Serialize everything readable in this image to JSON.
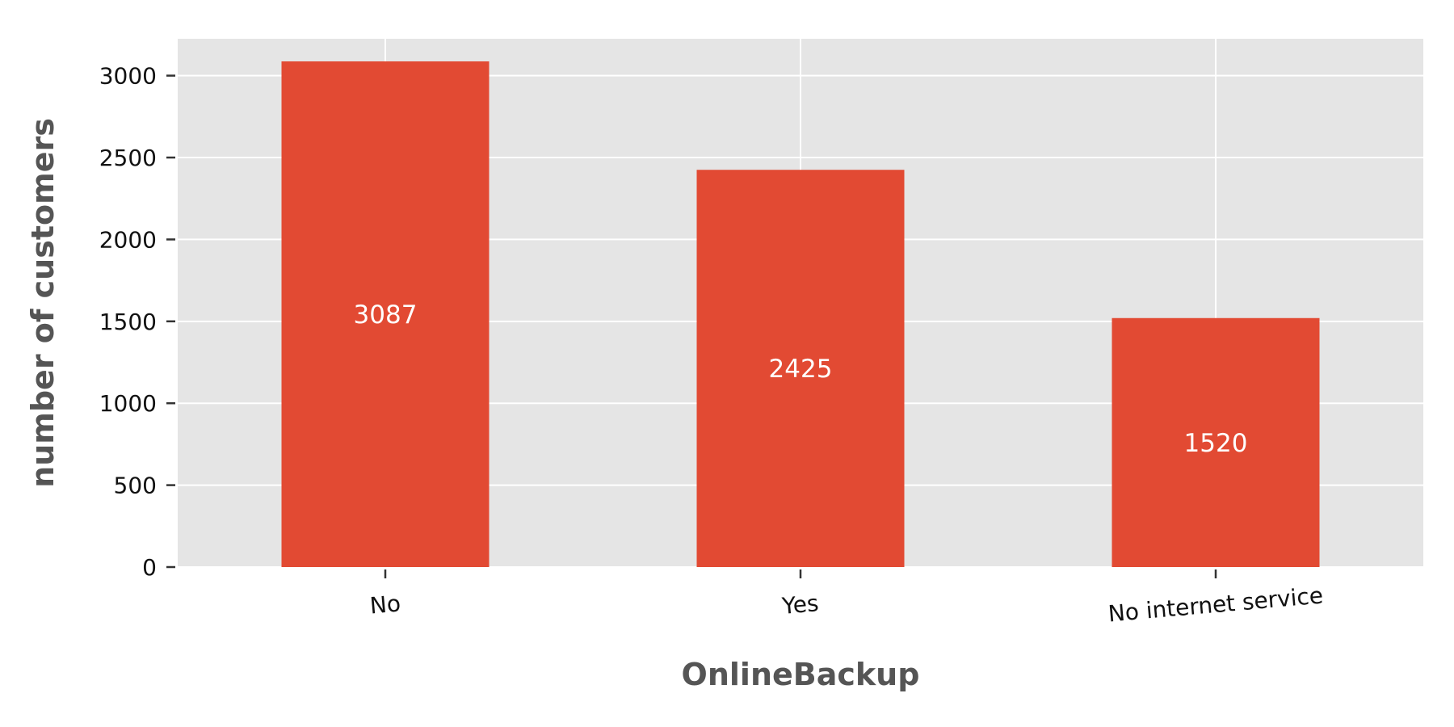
{
  "chart_data": {
    "type": "bar",
    "categories": [
      "No",
      "Yes",
      "No internet service"
    ],
    "values": [
      3087,
      2425,
      1520
    ],
    "data_labels": [
      "3087",
      "2425",
      "1520"
    ],
    "title": "",
    "xlabel": "OnlineBackup",
    "ylabel": "number of customers",
    "ylim": [
      0,
      3225
    ],
    "yticks": [
      0,
      500,
      1000,
      1500,
      2000,
      2500,
      3000
    ],
    "ytick_labels": [
      "0",
      "500",
      "1000",
      "1500",
      "2000",
      "2500",
      "3000"
    ],
    "grid": true,
    "legend": "none",
    "colors": {
      "bar": "#E24A33",
      "plot_background": "#E5E5E5",
      "grid": "#FFFFFF",
      "bar_label": "#FFFFFF",
      "axis_label": "#555555",
      "tick_label": "#111111"
    }
  }
}
